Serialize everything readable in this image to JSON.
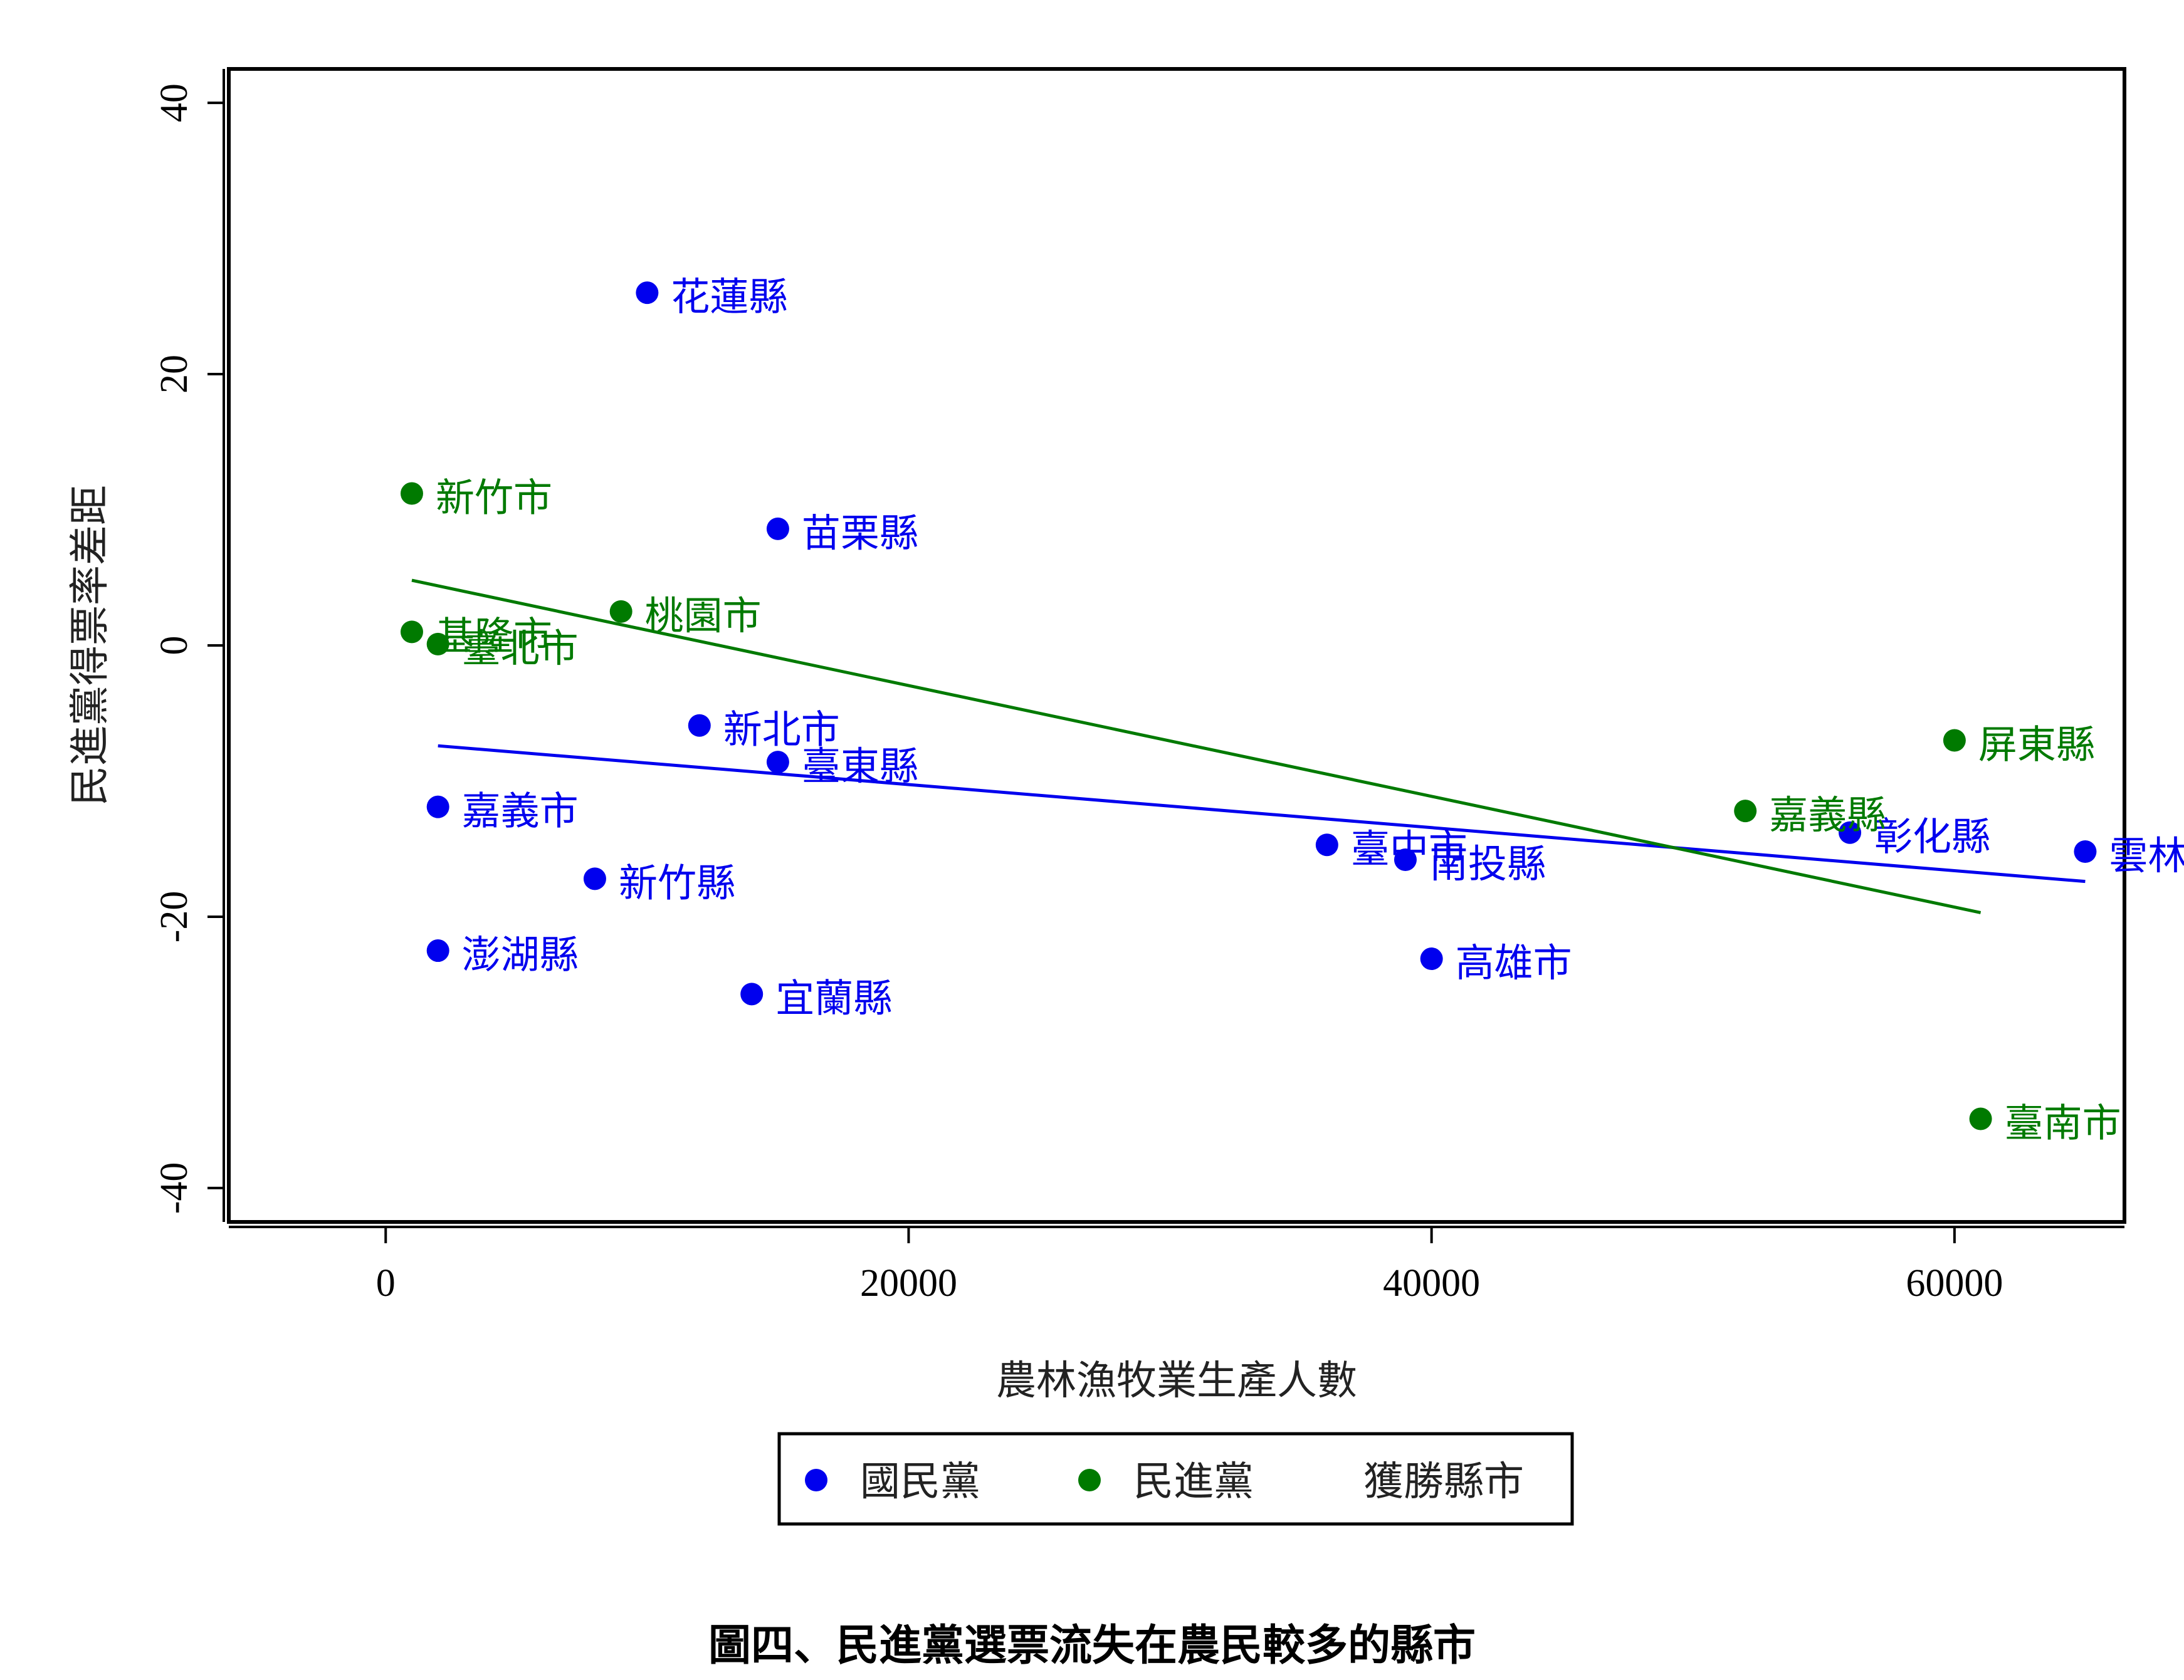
{
  "caption": "圖四、民進黨選票流失在農民較多的縣市",
  "chart_data": {
    "type": "scatter",
    "title": "",
    "xlabel": "農林漁牧業生產人數",
    "ylabel": "民進黨得票率差距",
    "xlim": [
      -6000,
      66500
    ],
    "ylim": [
      -42.5,
      42.5
    ],
    "xticks": [
      0,
      20000,
      40000,
      60000
    ],
    "xtick_labels": [
      "0",
      "20000",
      "40000",
      "60000"
    ],
    "yticks": [
      -40,
      -20,
      0,
      20,
      40
    ],
    "ytick_labels": [
      "-40",
      "-20",
      "0",
      "20",
      "40"
    ],
    "grid": false,
    "legend_position": "bottom",
    "colors": {
      "kmt": "#0000ee",
      "dpp": "#007a00"
    },
    "series": [
      {
        "key": "kmt",
        "name": "國民黨",
        "color": "#0000ee",
        "points": [
          {
            "label": "花蓮縣",
            "x": 10000,
            "y": 26.0
          },
          {
            "label": "苗栗縣",
            "x": 15000,
            "y": 8.6
          },
          {
            "label": "新北市",
            "x": 12000,
            "y": -5.9
          },
          {
            "label": "臺東縣",
            "x": 15000,
            "y": -8.6
          },
          {
            "label": "嘉義市",
            "x": 2000,
            "y": -11.9
          },
          {
            "label": "新竹縣",
            "x": 8000,
            "y": -17.2
          },
          {
            "label": "澎湖縣",
            "x": 2000,
            "y": -22.5
          },
          {
            "label": "宜蘭縣",
            "x": 14000,
            "y": -25.7
          },
          {
            "label": "臺中市",
            "x": 36000,
            "y": -14.7
          },
          {
            "label": "南投縣",
            "x": 39000,
            "y": -15.8
          },
          {
            "label": "高雄市",
            "x": 40000,
            "y": -23.1
          },
          {
            "label": "彰化縣",
            "x": 56000,
            "y": -13.8
          },
          {
            "label": "雲林縣",
            "x": 65000,
            "y": -15.2
          }
        ],
        "fit": {
          "x": [
            2000,
            65000
          ],
          "y": [
            -7.4,
            -17.4
          ]
        }
      },
      {
        "key": "dpp",
        "name": "民進黨",
        "color": "#007a00",
        "points": [
          {
            "label": "新竹市",
            "x": 1000,
            "y": 11.2
          },
          {
            "label": "基隆市",
            "x": 1000,
            "y": 1.0
          },
          {
            "label": "臺北市",
            "x": 2000,
            "y": 0.1
          },
          {
            "label": "桃園市",
            "x": 9000,
            "y": 2.5
          },
          {
            "label": "屏東縣",
            "x": 60000,
            "y": -7.0
          },
          {
            "label": "嘉義縣",
            "x": 52000,
            "y": -12.2
          },
          {
            "label": "臺南市",
            "x": 61000,
            "y": -34.9
          }
        ],
        "fit": {
          "x": [
            1000,
            61000
          ],
          "y": [
            4.8,
            -19.7
          ]
        }
      }
    ],
    "legend_entries": [
      {
        "label": "國民黨",
        "marker": "dot",
        "color": "#0000ee"
      },
      {
        "label": "民進黨",
        "marker": "dot",
        "color": "#007a00"
      },
      {
        "label": "獲勝縣市",
        "marker": "none",
        "color": "#000000"
      }
    ]
  }
}
